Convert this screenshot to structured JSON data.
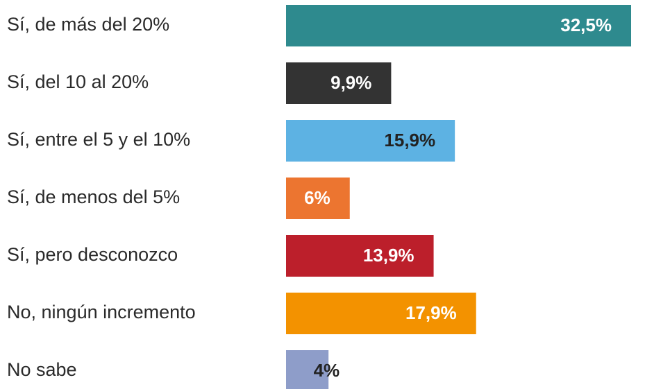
{
  "chart_data": {
    "type": "bar",
    "orientation": "horizontal",
    "categories": [
      "Sí, de más del 20%",
      "Sí, del 10 al 20%",
      "Sí, entre el 5 y el 10%",
      "Sí, de menos del 5%",
      "Sí, pero desconozco",
      "No, ningún incremento",
      "No sabe"
    ],
    "values": [
      32.5,
      9.9,
      15.9,
      6,
      13.9,
      17.9,
      4
    ],
    "value_labels": [
      "32,5%",
      "9,9%",
      "15,9%",
      "6%",
      "13,9%",
      "17,9%",
      "4%"
    ],
    "colors": [
      "#2e8a8e",
      "#333333",
      "#5db2e3",
      "#ec7530",
      "#bc1f2b",
      "#f39200",
      "#8e9dc9"
    ],
    "value_label_colors": [
      "#ffffff",
      "#ffffff",
      "#222222",
      "#ffffff",
      "#ffffff",
      "#ffffff",
      "#222222"
    ]
  }
}
